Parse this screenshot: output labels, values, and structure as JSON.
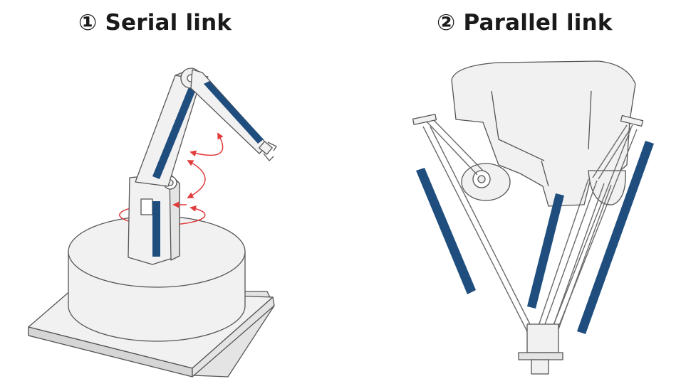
{
  "panels": [
    {
      "id": "serial",
      "number": "①",
      "title": "Serial link"
    },
    {
      "id": "parallel",
      "number": "②",
      "title": "Parallel link"
    }
  ],
  "colors": {
    "link_highlight": "#1f4e7e",
    "rotation_arrow": "#e23b3b",
    "body_fill": "#eeeeee",
    "outline": "#555555"
  },
  "icons": [
    "rotation-arrow-icon"
  ]
}
